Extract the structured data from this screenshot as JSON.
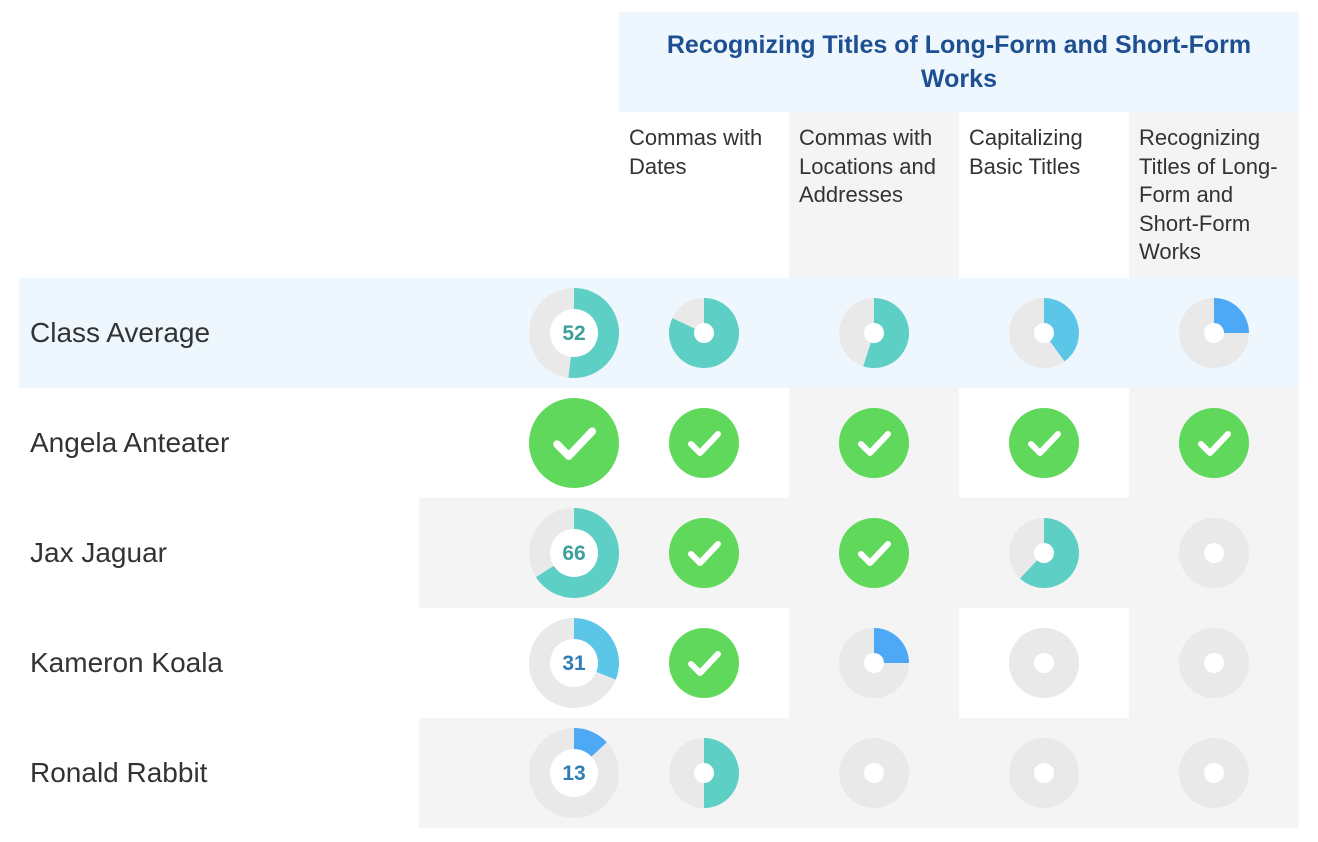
{
  "group_header": {
    "title": "Recognizing Titles of Long-Form and Short-Form Works"
  },
  "columns": [
    {
      "label": "Commas with Dates"
    },
    {
      "label": "Commas with Locations and Addresses"
    },
    {
      "label": "Capitalizing Basic Titles"
    },
    {
      "label": "Recognizing Titles of Long-Form and Short-Form Works"
    }
  ],
  "colors": {
    "mastered": "#5fd85c",
    "high": "#5ecfc4",
    "mid": "#5cc6e8",
    "low": "#4da8f5",
    "track": "#e9e9e9",
    "score_text_teal": "#3e9e9a",
    "score_text_blue": "#2f7db6"
  },
  "rows": [
    {
      "name": "Class Average",
      "type": "average",
      "overall": 52,
      "skills": [
        82,
        55,
        40,
        25
      ]
    },
    {
      "name": "Angela Anteater",
      "type": "student",
      "overall": 100,
      "skills": [
        100,
        100,
        100,
        100
      ]
    },
    {
      "name": "Jax Jaguar",
      "type": "student",
      "overall": 66,
      "skills": [
        100,
        100,
        62,
        0
      ]
    },
    {
      "name": "Kameron Koala",
      "type": "student",
      "overall": 31,
      "skills": [
        100,
        25,
        0,
        0
      ]
    },
    {
      "name": "Ronald Rabbit",
      "type": "student",
      "overall": 13,
      "skills": [
        50,
        0,
        0,
        0
      ]
    }
  ],
  "icons": {
    "mastered": "check-circle-icon",
    "progress": "progress-ring-icon"
  }
}
